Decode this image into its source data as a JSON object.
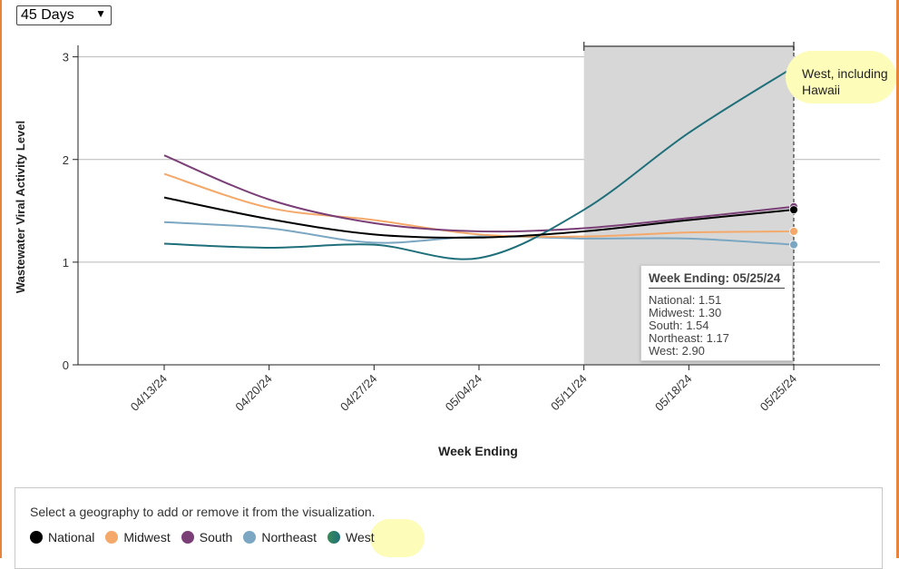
{
  "controls": {
    "range_selected": "45 Days"
  },
  "tooltip": {
    "title": "Week Ending: 05/25/24",
    "lines": [
      "National: 1.51",
      "Midwest: 1.30",
      "South: 1.54",
      "Northeast: 1.17",
      "West: 2.90"
    ]
  },
  "callout": {
    "line1": "West, including",
    "line2": "Hawaii"
  },
  "legend": {
    "prompt": "Select a geography to add or remove it from the visualization.",
    "items": [
      {
        "label": "National",
        "color": "#000000"
      },
      {
        "label": "Midwest",
        "color": "#f4a96a"
      },
      {
        "label": "South",
        "color": "#7b3f78"
      },
      {
        "label": "Northeast",
        "color": "#7ba7c2"
      },
      {
        "label": "West",
        "color": "#1f6f7a"
      }
    ]
  },
  "chart_data": {
    "type": "line",
    "xlabel": "Week Ending",
    "ylabel": "Wastewater Viral Activity Level",
    "categories": [
      "04/13/24",
      "04/20/24",
      "04/27/24",
      "05/04/24",
      "05/11/24",
      "05/18/24",
      "05/25/24"
    ],
    "ylim": [
      0,
      3.2
    ],
    "yticks": [
      0,
      1,
      2,
      3
    ],
    "grid": true,
    "highlight_range": [
      "05/11/24",
      "05/25/24"
    ],
    "series": [
      {
        "name": "National",
        "color": "#000000",
        "values": [
          1.63,
          1.42,
          1.27,
          1.24,
          1.3,
          1.41,
          1.51
        ]
      },
      {
        "name": "Midwest",
        "color": "#f4a96a",
        "values": [
          1.86,
          1.53,
          1.41,
          1.27,
          1.25,
          1.29,
          1.3
        ]
      },
      {
        "name": "South",
        "color": "#7b3f78",
        "values": [
          2.04,
          1.61,
          1.38,
          1.3,
          1.33,
          1.43,
          1.54
        ]
      },
      {
        "name": "Northeast",
        "color": "#7ba7c2",
        "values": [
          1.39,
          1.33,
          1.19,
          1.25,
          1.23,
          1.23,
          1.17
        ]
      },
      {
        "name": "West",
        "color": "#1f6f7a",
        "values": [
          1.18,
          1.14,
          1.17,
          1.04,
          1.51,
          2.26,
          2.9
        ]
      }
    ]
  }
}
